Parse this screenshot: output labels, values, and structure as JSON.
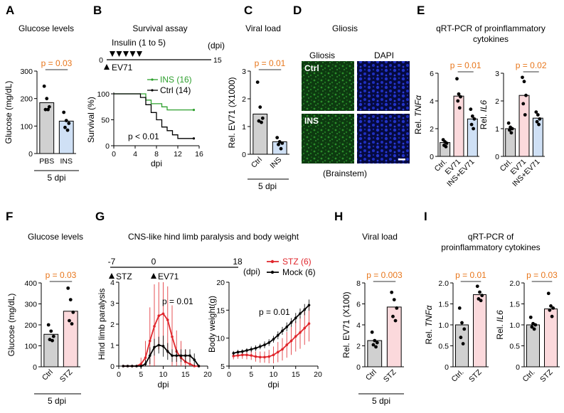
{
  "colors": {
    "gray_bar": "#d0d0d0",
    "blue_bar": "#cfe0f5",
    "pink_bar": "#fbd9dc",
    "pval": "#e8761b",
    "green": "#2ea02e",
    "red": "#e0262c",
    "black": "#000000",
    "sigline": "#9a9a9a"
  },
  "chart_data": [
    {
      "panel": "A",
      "type": "bar",
      "title": "Glucose levels",
      "ylabel": "Glucose (mg/dL)",
      "ylim": [
        0,
        300
      ],
      "yticks": [
        0,
        100,
        200,
        300
      ],
      "categories": [
        "PBS",
        "INS"
      ],
      "values": [
        185,
        118
      ],
      "points": [
        [
          245,
          200,
          170,
          160,
          160
        ],
        [
          150,
          120,
          110,
          95,
          85
        ]
      ],
      "pvalue": "p = 0.03",
      "footnote": "5 dpi"
    },
    {
      "panel": "B",
      "type": "line",
      "title": "Survival assay",
      "timeline": {
        "label_insulin": "Insulin (1 to 5)",
        "label_virus": "EV71",
        "unit": "(dpi)",
        "start": "0",
        "end": "15"
      },
      "xlabel": "dpi",
      "ylabel": "Survival (%)",
      "xlim": [
        0,
        16
      ],
      "ylim": [
        0,
        100
      ],
      "xticks": [
        0,
        4,
        8,
        12,
        16
      ],
      "yticks": [
        0,
        50,
        100
      ],
      "series": [
        {
          "name": "INS (16)",
          "steps": [
            [
              0,
              100
            ],
            [
              6,
              100
            ],
            [
              6,
              88
            ],
            [
              7,
              88
            ],
            [
              7,
              81
            ],
            [
              9,
              81
            ],
            [
              9,
              75
            ],
            [
              10,
              75
            ],
            [
              10,
              69
            ],
            [
              15,
              69
            ]
          ]
        },
        {
          "name": "Ctrl (14)",
          "steps": [
            [
              0,
              100
            ],
            [
              5,
              100
            ],
            [
              5,
              93
            ],
            [
              6,
              93
            ],
            [
              6,
              79
            ],
            [
              7,
              79
            ],
            [
              7,
              64
            ],
            [
              8,
              64
            ],
            [
              8,
              50
            ],
            [
              9,
              50
            ],
            [
              9,
              36
            ],
            [
              10,
              36
            ],
            [
              10,
              29
            ],
            [
              11,
              29
            ],
            [
              11,
              21
            ],
            [
              12,
              21
            ],
            [
              12,
              14
            ],
            [
              15,
              14
            ]
          ]
        }
      ],
      "pvalue": "p < 0.01"
    },
    {
      "panel": "C",
      "type": "bar",
      "title": "Viral load",
      "ylabel": "Rel. EV71 (X1000)",
      "ylim": [
        0,
        3
      ],
      "yticks": [
        0,
        1,
        2,
        3
      ],
      "categories": [
        "Ctrl",
        "INS"
      ],
      "values": [
        1.45,
        0.45
      ],
      "points": [
        [
          2.6,
          1.7,
          1.3,
          1.2,
          1.15
        ],
        [
          0.6,
          0.45,
          0.4,
          0.35,
          0.2
        ]
      ],
      "pvalue": "p = 0.01",
      "footnote": "5 dpi"
    },
    {
      "panel": "E",
      "type": "bar",
      "title": "qRT-PCR of proinflammatory cytokines",
      "subplots": [
        {
          "ylabel_prefix": "Rel. ",
          "ylabel_gene": "TNFα",
          "ylim": [
            0,
            6
          ],
          "yticks": [
            0,
            2,
            4,
            6
          ],
          "categories": [
            "Ctrl.",
            "EV71",
            "INS+EV71"
          ],
          "values": [
            1.0,
            4.35,
            2.7
          ],
          "points": [
            [
              1.2,
              1.05,
              0.95,
              0.8,
              0.7
            ],
            [
              5.6,
              4.5,
              4.3,
              4.0,
              3.5
            ],
            [
              3.4,
              2.9,
              2.7,
              2.3,
              2.0
            ]
          ],
          "pvalue": "p = 0.01"
        },
        {
          "ylabel_prefix": "Rel. ",
          "ylabel_gene": "IL6",
          "ylim": [
            0,
            3
          ],
          "yticks": [
            0,
            1,
            2,
            3
          ],
          "categories": [
            "Ctrl.",
            "EV71",
            "INS+EV71"
          ],
          "values": [
            1.0,
            2.2,
            1.38
          ],
          "points": [
            [
              1.2,
              1.05,
              1.0,
              0.95,
              0.85
            ],
            [
              2.85,
              2.7,
              2.2,
              1.9,
              1.5
            ],
            [
              1.6,
              1.5,
              1.35,
              1.25,
              1.15
            ]
          ],
          "pvalue": "p = 0.02"
        }
      ]
    },
    {
      "panel": "F",
      "type": "bar",
      "title": "Glucose levels",
      "ylabel": "Glucose (mg/dL)",
      "ylim": [
        0,
        400
      ],
      "yticks": [
        0,
        100,
        200,
        300,
        400
      ],
      "categories": [
        "Ctrl",
        "STZ"
      ],
      "values": [
        155,
        265
      ],
      "points": [
        [
          200,
          170,
          145,
          130,
          125
        ],
        [
          375,
          320,
          260,
          220,
          205
        ]
      ],
      "pvalue": "p = 0.03",
      "footnote": "5 dpi"
    },
    {
      "panel": "G",
      "type": "line",
      "title": "CNS-like hind limb paralysis and body weight",
      "timeline": {
        "start": "-7",
        "mid": "0",
        "end": "18",
        "unit": "(dpi)",
        "label_stz": "STZ",
        "label_virus": "EV71"
      },
      "subplots": [
        {
          "xlabel": "dpi",
          "ylabel": "Hind limb paralysis",
          "xlim": [
            0,
            20
          ],
          "ylim": [
            0,
            4
          ],
          "xticks": [
            0,
            5,
            10,
            15,
            20
          ],
          "yticks": [
            0,
            1,
            2,
            3,
            4
          ],
          "pvalue": "p = 0.01",
          "series": [
            {
              "x": [
                1,
                2,
                3,
                4,
                5,
                6,
                7,
                8,
                9,
                10,
                11,
                12,
                13,
                14,
                15,
                16,
                17,
                18
              ],
              "y": [
                0,
                0,
                0,
                0,
                0.1,
                0.4,
                1.2,
                1.9,
                2.4,
                2.5,
                2.2,
                1.4,
                0.7,
                0.4,
                0.2,
                0.1,
                0,
                0
              ],
              "err": [
                0,
                0,
                0,
                0,
                0.3,
                0.8,
                1.6,
                2.0,
                1.6,
                1.5,
                1.6,
                1.5,
                1.0,
                0.8,
                0.6,
                0.4,
                0,
                0
              ]
            },
            {
              "x": [
                1,
                2,
                3,
                4,
                5,
                6,
                7,
                8,
                9,
                10,
                11,
                12,
                13,
                14,
                15,
                16,
                17,
                18
              ],
              "y": [
                0,
                0,
                0,
                0,
                0,
                0.1,
                0.5,
                0.9,
                1.0,
                0.95,
                0.7,
                0.5,
                0.5,
                0.5,
                0.5,
                0.5,
                0.3,
                0
              ],
              "err": [
                0,
                0,
                0,
                0,
                0,
                0.2,
                0.4,
                0.4,
                0.4,
                0.5,
                0.4,
                0.3,
                0.3,
                0.3,
                0.3,
                0.3,
                0.3,
                0
              ]
            }
          ]
        },
        {
          "xlabel": "dpi",
          "ylabel": "Body weight(g)",
          "xlim": [
            0,
            20
          ],
          "ylim": [
            5,
            20
          ],
          "xticks": [
            0,
            5,
            10,
            15,
            20
          ],
          "yticks": [
            5,
            10,
            15,
            20
          ],
          "pvalue": "p = 0.01",
          "series": [
            {
              "name": "STZ (6)",
              "x": [
                1,
                2,
                3,
                4,
                5,
                6,
                7,
                8,
                9,
                10,
                11,
                12,
                13,
                14,
                15,
                16,
                17,
                18
              ],
              "y": [
                6.8,
                6.9,
                7.0,
                7.0,
                6.9,
                6.7,
                6.6,
                6.6,
                6.7,
                7.0,
                7.5,
                8.0,
                8.8,
                9.5,
                10.3,
                11.0,
                11.8,
                12.6
              ],
              "err": [
                0.6,
                0.6,
                0.7,
                0.8,
                0.8,
                0.9,
                1.0,
                1.0,
                1.2,
                1.5,
                1.8,
                2.0,
                2.3,
                2.5,
                2.7,
                2.9,
                3.0,
                3.2
              ]
            },
            {
              "name": "Mock (6)",
              "x": [
                1,
                2,
                3,
                4,
                5,
                6,
                7,
                8,
                9,
                10,
                11,
                12,
                13,
                14,
                15,
                16,
                17,
                18
              ],
              "y": [
                7.3,
                7.5,
                7.6,
                7.8,
                8.0,
                8.2,
                8.5,
                8.8,
                9.2,
                9.8,
                10.5,
                11.3,
                12.0,
                12.8,
                13.6,
                14.4,
                15.1,
                15.9
              ],
              "err": [
                0.4,
                0.4,
                0.4,
                0.4,
                0.5,
                0.5,
                0.5,
                0.6,
                0.6,
                0.6,
                0.7,
                0.7,
                0.8,
                0.8,
                0.9,
                0.9,
                1.0,
                1.0
              ]
            }
          ]
        }
      ]
    },
    {
      "panel": "H",
      "type": "bar",
      "title": "Viral load",
      "ylabel": "Rel. EV71 (X100)",
      "ylim": [
        0,
        8
      ],
      "yticks": [
        0,
        2,
        4,
        6,
        8
      ],
      "categories": [
        "Ctrl",
        "STZ"
      ],
      "values": [
        2.5,
        5.7
      ],
      "points": [
        [
          3.3,
          2.5,
          2.3,
          2.1,
          1.9
        ],
        [
          7.1,
          6.4,
          5.6,
          4.8,
          4.4
        ]
      ],
      "pvalue": "p = 0.003",
      "footnote": "5 dpi"
    },
    {
      "panel": "I",
      "type": "bar",
      "title": "qRT-PCR of proinflammatory cytokines",
      "subplots": [
        {
          "ylabel_prefix": "Rel. ",
          "ylabel_gene": "TNFα",
          "ylim": [
            0,
            2
          ],
          "yticks": [
            0,
            0.5,
            1.0,
            1.5,
            2.0
          ],
          "ytick_labels": [
            "0",
            "0.5",
            "1.0",
            "1.5",
            "2.0"
          ],
          "categories": [
            "Ctrl.",
            "STZ"
          ],
          "values": [
            1.0,
            1.72
          ],
          "points": [
            [
              1.4,
              1.05,
              0.9,
              0.7,
              0.55
            ],
            [
              1.92,
              1.78,
              1.7,
              1.62,
              1.58
            ]
          ],
          "pvalue": "p = 0.01"
        },
        {
          "ylabel_prefix": "Rel. ",
          "ylabel_gene": "IL6",
          "ylim": [
            0,
            2
          ],
          "yticks": [
            0,
            0.5,
            1.0,
            1.5,
            2.0
          ],
          "ytick_labels": [
            "0",
            "0.5",
            "1.0",
            "1.5",
            "2.0"
          ],
          "categories": [
            "Ctrl.",
            "STZ"
          ],
          "values": [
            1.0,
            1.38
          ],
          "points": [
            [
              1.18,
              1.03,
              1.0,
              0.95,
              0.9
            ],
            [
              1.75,
              1.45,
              1.4,
              1.35,
              1.2
            ]
          ],
          "pvalue": "p = 0.03"
        }
      ]
    }
  ],
  "panel_D": {
    "title": "Gliosis",
    "col_labels": [
      "Gliosis",
      "DAPI"
    ],
    "row_labels": [
      "Ctrl",
      "INS"
    ],
    "caption": "(Brainstem)"
  },
  "panel_letters": [
    "A",
    "B",
    "C",
    "D",
    "E",
    "F",
    "G",
    "H",
    "I"
  ]
}
